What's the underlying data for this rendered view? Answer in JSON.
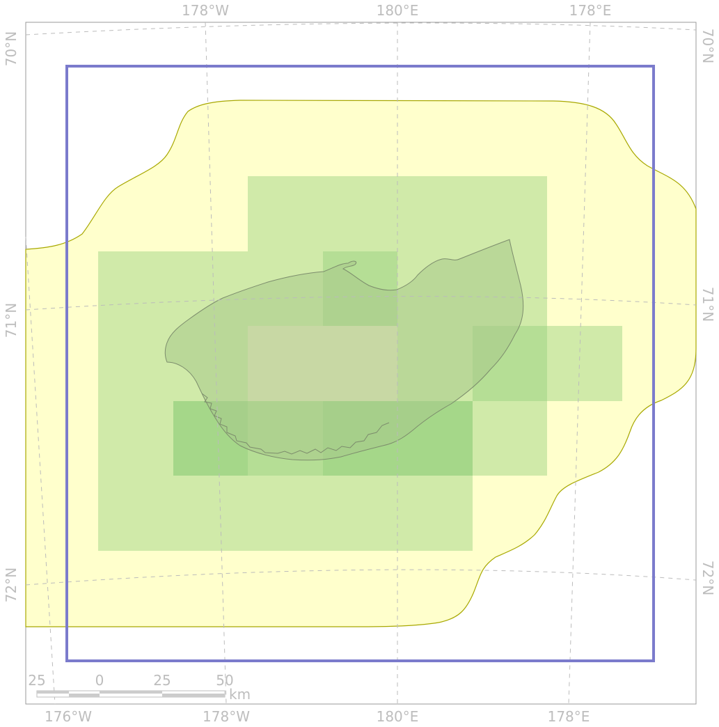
{
  "graticule": {
    "top": [
      "178°W",
      "180°E",
      "178°E"
    ],
    "bottom": [
      "176°W",
      "178°W",
      "180°E",
      "178°E"
    ],
    "left": [
      "70°N",
      "71°N",
      "72°N"
    ],
    "right": [
      "70°N",
      "71°N",
      "72°N"
    ]
  },
  "scalebar": {
    "ticks": [
      "25",
      "0",
      "25",
      "50"
    ],
    "unit": "km"
  },
  "colors": {
    "buffer_fill": "#ffffcc",
    "buffer_stroke": "#a8a800",
    "cell_fill": "#8fcc7a",
    "island_fill": "#a8c88a",
    "island_stroke": "#7c8c6c",
    "frame": "#7b7bcc",
    "graticule": "#bbbbbb",
    "label": "#bdbdbd"
  },
  "layers": {
    "buffer": "buffer-area",
    "cells": "grid-cells",
    "island": "island",
    "frame": "study-extent-frame"
  }
}
